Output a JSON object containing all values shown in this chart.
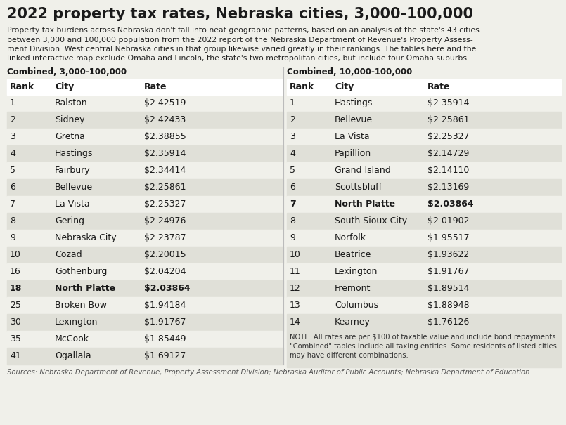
{
  "title": "2022 property tax rates, Nebraska cities, 3,000-100,000",
  "subtitle_lines": [
    "Property tax burdens across Nebraska don't fall into neat geographic patterns, based on an analysis of the state's 43 cities",
    "between 3,000 and 100,000 population from the 2022 report of the Nebraska Department of Revenue's Property Assess-",
    "ment Division. West central Nebraska cities in that group likewise varied greatly in their rankings. The tables here and the",
    "linked interactive map exclude Omaha and Lincoln, the state's two metropolitan cities, but include four Omaha suburbs."
  ],
  "left_table_header": "Combined, 3,000-100,000",
  "right_table_header": "Combined, 10,000-100,000",
  "left_columns": [
    "Rank",
    "City",
    "Rate"
  ],
  "right_columns": [
    "Rank",
    "City",
    "Rate"
  ],
  "left_data": [
    [
      "1",
      "Ralston",
      "$2.42519",
      false
    ],
    [
      "2",
      "Sidney",
      "$2.42433",
      false
    ],
    [
      "3",
      "Gretna",
      "$2.38855",
      false
    ],
    [
      "4",
      "Hastings",
      "$2.35914",
      false
    ],
    [
      "5",
      "Fairbury",
      "$2.34414",
      false
    ],
    [
      "6",
      "Bellevue",
      "$2.25861",
      false
    ],
    [
      "7",
      "La Vista",
      "$2.25327",
      false
    ],
    [
      "8",
      "Gering",
      "$2.24976",
      false
    ],
    [
      "9",
      "Nebraska City",
      "$2.23787",
      false
    ],
    [
      "10",
      "Cozad",
      "$2.20015",
      false
    ],
    [
      "16",
      "Gothenburg",
      "$2.04204",
      false
    ],
    [
      "18",
      "North Platte",
      "$2.03864",
      true
    ],
    [
      "25",
      "Broken Bow",
      "$1.94184",
      false
    ],
    [
      "30",
      "Lexington",
      "$1.91767",
      false
    ],
    [
      "35",
      "McCook",
      "$1.85449",
      false
    ],
    [
      "41",
      "Ogallala",
      "$1.69127",
      false
    ]
  ],
  "right_data": [
    [
      "1",
      "Hastings",
      "$2.35914",
      false
    ],
    [
      "2",
      "Bellevue",
      "$2.25861",
      false
    ],
    [
      "3",
      "La Vista",
      "$2.25327",
      false
    ],
    [
      "4",
      "Papillion",
      "$2.14729",
      false
    ],
    [
      "5",
      "Grand Island",
      "$2.14110",
      false
    ],
    [
      "6",
      "Scottsbluff",
      "$2.13169",
      false
    ],
    [
      "7",
      "North Platte",
      "$2.03864",
      true
    ],
    [
      "8",
      "South Sioux City",
      "$2.01902",
      false
    ],
    [
      "9",
      "Norfolk",
      "$1.95517",
      false
    ],
    [
      "10",
      "Beatrice",
      "$1.93622",
      false
    ],
    [
      "11",
      "Lexington",
      "$1.91767",
      false
    ],
    [
      "12",
      "Fremont",
      "$1.89514",
      false
    ],
    [
      "13",
      "Columbus",
      "$1.88948",
      false
    ],
    [
      "14",
      "Kearney",
      "$1.76126",
      false
    ]
  ],
  "note_lines": [
    "NOTE: All rates are per $100 of taxable value and include bond repayments.",
    "\"Combined\" tables include all taxing entities. Some residents of listed cities",
    "may have different combinations."
  ],
  "source": "Sources: Nebraska Department of Revenue, Property Assessment Division; Nebraska Auditor of Public Accounts; Nebraska Department of Education",
  "bg_color": "#f0f0ea",
  "row_light": "#f0f0ea",
  "row_dark": "#e0e0d8",
  "header_bg": "#ffffff",
  "text_color": "#1a1a1a",
  "source_color": "#555555",
  "note_color": "#333333"
}
